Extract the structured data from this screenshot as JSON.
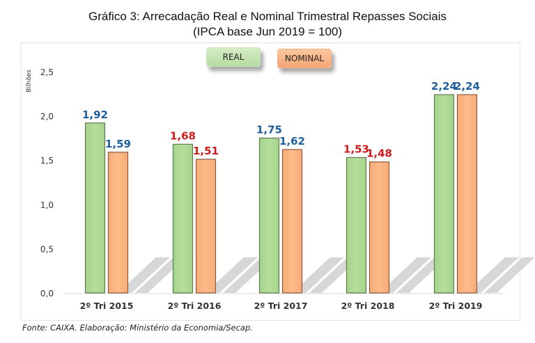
{
  "chart_data": {
    "type": "bar",
    "title": "Gráfico 3: Arrecadação Real e Nominal Trimestral Repasses Sociais",
    "subtitle": "(IPCA base Jun 2019 = 100)",
    "xlabel": "",
    "ylabel": "Bilhões",
    "ylim": [
      0,
      2.5
    ],
    "yticks": [
      "0,0",
      "0,5",
      "1,0",
      "1,5",
      "2,0",
      "2,5"
    ],
    "ytick_values": [
      0,
      0.5,
      1.0,
      1.5,
      2.0,
      2.5
    ],
    "categories": [
      "2º Tri 2015",
      "2º Tri 2016",
      "2º Tri 2017",
      "2º Tri 2018",
      "2º Tri 2019"
    ],
    "series": [
      {
        "name": "REAL",
        "values": [
          1.92,
          1.68,
          1.75,
          1.53,
          2.24
        ],
        "labels": [
          "1,92",
          "1,68",
          "1,75",
          "1,53",
          "2,24"
        ],
        "color": "#b5dd9c"
      },
      {
        "name": "NOMINAL",
        "values": [
          1.59,
          1.51,
          1.62,
          1.48,
          2.24
        ],
        "labels": [
          "1,59",
          "1,51",
          "1,62",
          "1,48",
          "2,24"
        ],
        "color": "#fdbb8a"
      }
    ],
    "label_colors": [
      "#1f5f9e",
      "#cc1c1c",
      "#1f5f9e",
      "#cc1c1c",
      "#1f5f9e"
    ],
    "legend": "top-center",
    "grid": false
  },
  "source": "Fonte: CAIXA. Elaboração: Ministério da Economia/Secap."
}
